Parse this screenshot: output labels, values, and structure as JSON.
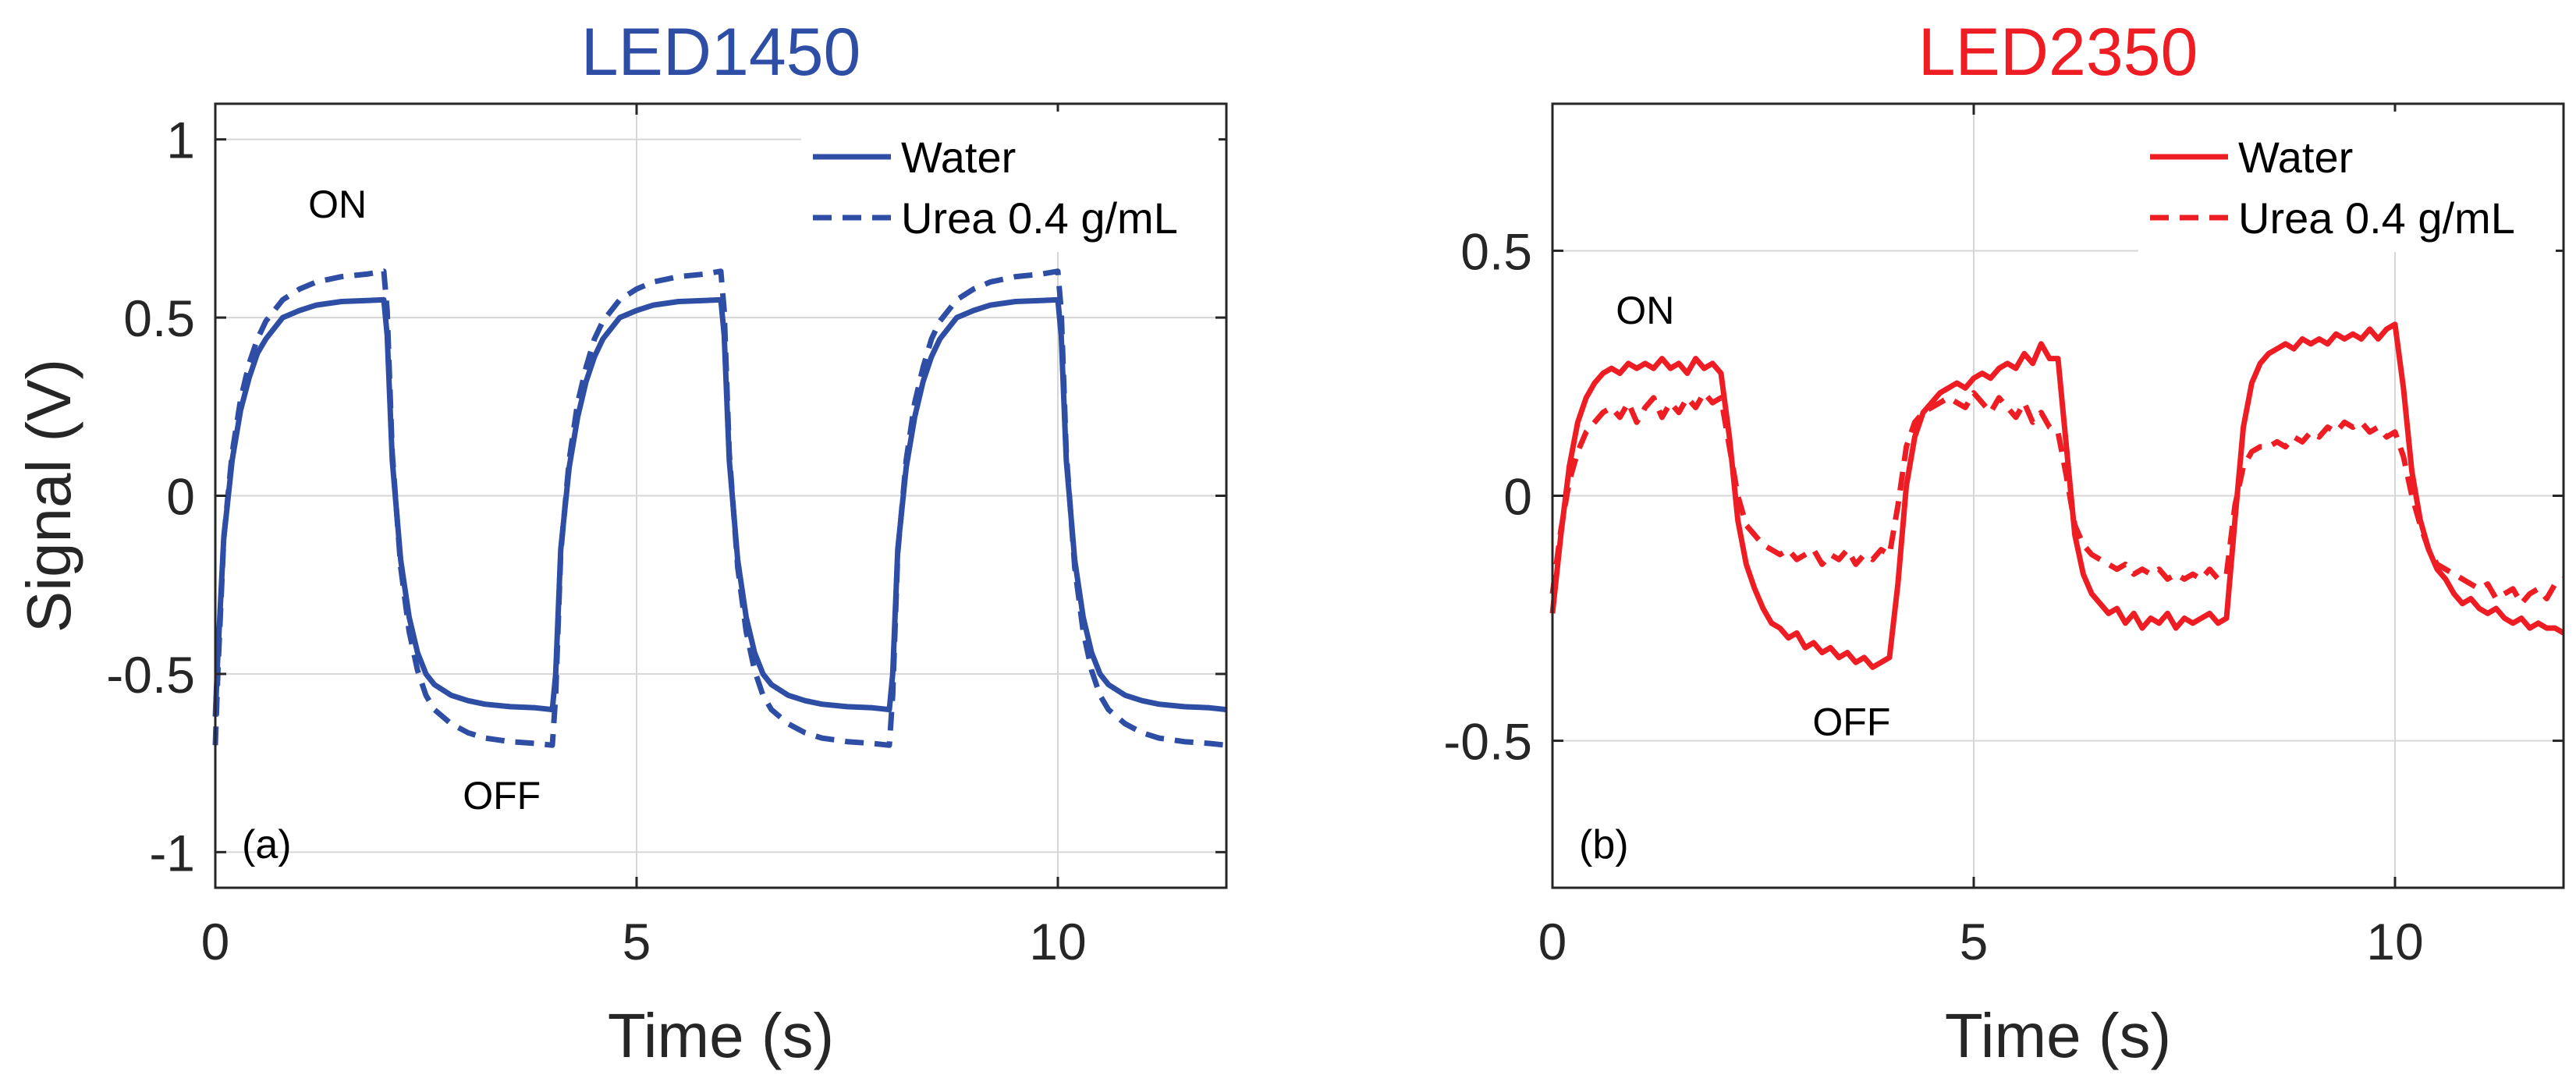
{
  "chart_data": [
    {
      "type": "line",
      "panel_label": "(a)",
      "title": "LED1450",
      "title_color": "#2E4EA5",
      "xlabel": "Time (s)",
      "ylabel": "Signal (V)",
      "xlim": [
        0,
        12
      ],
      "ylim": [
        -1.1,
        1.1
      ],
      "xticks": [
        0,
        5,
        10
      ],
      "xtick_labels": [
        "0",
        "5",
        "10"
      ],
      "yticks": [
        -1,
        -0.5,
        0,
        0.5,
        1
      ],
      "ytick_labels": [
        "-1",
        "-0.5",
        "0",
        "0.5",
        "1"
      ],
      "grid": true,
      "legend_position": "top-right",
      "series": [
        {
          "name": "Water",
          "style": "solid",
          "color": "#2E4EA5",
          "x": [
            0,
            0.03,
            0.1,
            0.2,
            0.3,
            0.4,
            0.5,
            0.6,
            0.8,
            1.0,
            1.2,
            1.5,
            1.8,
            2.0,
            2.04,
            2.1,
            2.2,
            2.3,
            2.4,
            2.5,
            2.6,
            2.8,
            3.0,
            3.2,
            3.5,
            3.8,
            4.0,
            4.04,
            4.1,
            4.2,
            4.3,
            4.4,
            4.5,
            4.6,
            4.8,
            5.0,
            5.2,
            5.5,
            5.8,
            6.0,
            6.04,
            6.1,
            6.2,
            6.3,
            6.4,
            6.5,
            6.6,
            6.8,
            7.0,
            7.2,
            7.5,
            7.8,
            8.0,
            8.04,
            8.1,
            8.2,
            8.3,
            8.4,
            8.5,
            8.6,
            8.8,
            9.0,
            9.2,
            9.5,
            9.8,
            10.0,
            10.04,
            10.1,
            10.2,
            10.3,
            10.4,
            10.5,
            10.6,
            10.8,
            11.0,
            11.2,
            11.5,
            11.8,
            12.0
          ],
          "y": [
            -0.62,
            -0.45,
            -0.12,
            0.1,
            0.24,
            0.33,
            0.4,
            0.44,
            0.5,
            0.52,
            0.535,
            0.545,
            0.548,
            0.55,
            0.45,
            0.1,
            -0.18,
            -0.34,
            -0.44,
            -0.5,
            -0.53,
            -0.56,
            -0.575,
            -0.585,
            -0.592,
            -0.595,
            -0.6,
            -0.5,
            -0.15,
            0.08,
            0.22,
            0.32,
            0.39,
            0.44,
            0.5,
            0.52,
            0.535,
            0.545,
            0.548,
            0.55,
            0.45,
            0.1,
            -0.18,
            -0.34,
            -0.44,
            -0.5,
            -0.53,
            -0.56,
            -0.575,
            -0.585,
            -0.592,
            -0.595,
            -0.6,
            -0.5,
            -0.15,
            0.08,
            0.22,
            0.32,
            0.39,
            0.44,
            0.5,
            0.52,
            0.535,
            0.545,
            0.548,
            0.55,
            0.45,
            0.1,
            -0.18,
            -0.34,
            -0.44,
            -0.5,
            -0.53,
            -0.56,
            -0.575,
            -0.585,
            -0.592,
            -0.595,
            -0.6
          ]
        },
        {
          "name": "Urea 0.4 g/mL",
          "style": "dashed",
          "color": "#2E4EA5",
          "x": [
            0,
            0.03,
            0.1,
            0.2,
            0.3,
            0.4,
            0.5,
            0.6,
            0.8,
            1.0,
            1.2,
            1.5,
            1.8,
            2.0,
            2.04,
            2.1,
            2.2,
            2.3,
            2.4,
            2.5,
            2.6,
            2.8,
            3.0,
            3.2,
            3.5,
            3.8,
            4.0,
            4.04,
            4.1,
            4.2,
            4.3,
            4.4,
            4.5,
            4.6,
            4.8,
            5.0,
            5.2,
            5.5,
            5.8,
            6.0,
            6.04,
            6.1,
            6.2,
            6.3,
            6.4,
            6.5,
            6.6,
            6.8,
            7.0,
            7.2,
            7.5,
            7.8,
            8.0,
            8.04,
            8.1,
            8.2,
            8.3,
            8.4,
            8.5,
            8.6,
            8.8,
            9.0,
            9.2,
            9.5,
            9.8,
            10.0,
            10.04,
            10.1,
            10.2,
            10.3,
            10.4,
            10.5,
            10.6,
            10.8,
            11.0,
            11.2,
            11.5,
            11.8,
            12.0
          ],
          "y": [
            -0.7,
            -0.5,
            -0.12,
            0.12,
            0.27,
            0.37,
            0.44,
            0.49,
            0.55,
            0.58,
            0.6,
            0.615,
            0.622,
            0.63,
            0.52,
            0.12,
            -0.2,
            -0.38,
            -0.49,
            -0.56,
            -0.6,
            -0.64,
            -0.665,
            -0.68,
            -0.69,
            -0.695,
            -0.7,
            -0.56,
            -0.16,
            0.1,
            0.26,
            0.36,
            0.44,
            0.49,
            0.55,
            0.58,
            0.6,
            0.615,
            0.622,
            0.63,
            0.52,
            0.12,
            -0.2,
            -0.38,
            -0.49,
            -0.56,
            -0.6,
            -0.64,
            -0.665,
            -0.68,
            -0.69,
            -0.695,
            -0.7,
            -0.56,
            -0.16,
            0.1,
            0.26,
            0.36,
            0.44,
            0.49,
            0.55,
            0.58,
            0.6,
            0.615,
            0.622,
            0.63,
            0.52,
            0.12,
            -0.2,
            -0.38,
            -0.49,
            -0.56,
            -0.6,
            -0.64,
            -0.665,
            -0.68,
            -0.69,
            -0.695,
            -0.7
          ]
        }
      ],
      "annotations": [
        {
          "text": "ON",
          "x": 1.45,
          "y": 0.82
        },
        {
          "text": "OFF",
          "x": 3.4,
          "y": -0.84
        }
      ]
    },
    {
      "type": "line",
      "panel_label": "(b)",
      "title": "LED2350",
      "title_color": "#EE1D23",
      "xlabel": "Time (s)",
      "ylabel": "",
      "xlim": [
        0,
        12
      ],
      "ylim": [
        -0.8,
        0.8
      ],
      "xticks": [
        0,
        5,
        10
      ],
      "xtick_labels": [
        "0",
        "5",
        "10"
      ],
      "yticks": [
        -0.5,
        0,
        0.5
      ],
      "ytick_labels": [
        "-0.5",
        "0",
        "0.5"
      ],
      "grid": true,
      "legend_position": "top-right",
      "series": [
        {
          "name": "Water",
          "style": "solid",
          "color": "#EE1D23",
          "x": [
            0,
            0.1,
            0.2,
            0.3,
            0.4,
            0.5,
            0.6,
            0.7,
            0.8,
            0.9,
            1.0,
            1.1,
            1.2,
            1.3,
            1.4,
            1.5,
            1.6,
            1.7,
            1.8,
            1.9,
            2.0,
            2.1,
            2.2,
            2.3,
            2.4,
            2.5,
            2.6,
            2.7,
            2.8,
            2.9,
            3.0,
            3.1,
            3.2,
            3.3,
            3.4,
            3.5,
            3.6,
            3.7,
            3.8,
            3.9,
            4.0,
            4.1,
            4.2,
            4.3,
            4.4,
            4.5,
            4.6,
            4.7,
            4.8,
            4.9,
            5.0,
            5.1,
            5.2,
            5.3,
            5.4,
            5.5,
            5.6,
            5.7,
            5.8,
            5.9,
            6.0,
            6.1,
            6.2,
            6.3,
            6.4,
            6.5,
            6.6,
            6.7,
            6.8,
            6.9,
            7.0,
            7.1,
            7.2,
            7.3,
            7.4,
            7.5,
            7.6,
            7.7,
            7.8,
            7.9,
            8.0,
            8.1,
            8.2,
            8.3,
            8.4,
            8.5,
            8.6,
            8.7,
            8.8,
            8.9,
            9.0,
            9.1,
            9.2,
            9.3,
            9.4,
            9.5,
            9.6,
            9.7,
            9.8,
            9.9,
            10.0,
            10.1,
            10.2,
            10.3,
            10.4,
            10.5,
            10.6,
            10.7,
            10.8,
            10.9,
            11.0,
            11.1,
            11.2,
            11.3,
            11.4,
            11.5,
            11.6,
            11.7,
            11.8,
            11.9,
            12.0
          ],
          "y": [
            -0.24,
            -0.08,
            0.06,
            0.15,
            0.2,
            0.23,
            0.25,
            0.26,
            0.25,
            0.27,
            0.26,
            0.27,
            0.26,
            0.28,
            0.26,
            0.27,
            0.25,
            0.28,
            0.26,
            0.27,
            0.25,
            0.12,
            -0.05,
            -0.14,
            -0.19,
            -0.23,
            -0.26,
            -0.27,
            -0.29,
            -0.28,
            -0.31,
            -0.3,
            -0.32,
            -0.31,
            -0.33,
            -0.32,
            -0.34,
            -0.33,
            -0.35,
            -0.34,
            -0.33,
            -0.18,
            0.02,
            0.12,
            0.17,
            0.19,
            0.21,
            0.22,
            0.23,
            0.22,
            0.24,
            0.25,
            0.24,
            0.26,
            0.27,
            0.26,
            0.29,
            0.27,
            0.31,
            0.28,
            0.28,
            0.1,
            -0.08,
            -0.16,
            -0.2,
            -0.22,
            -0.24,
            -0.23,
            -0.26,
            -0.24,
            -0.27,
            -0.25,
            -0.26,
            -0.24,
            -0.27,
            -0.25,
            -0.26,
            -0.25,
            -0.24,
            -0.26,
            -0.25,
            -0.05,
            0.14,
            0.23,
            0.27,
            0.29,
            0.3,
            0.31,
            0.3,
            0.32,
            0.31,
            0.32,
            0.31,
            0.33,
            0.32,
            0.33,
            0.32,
            0.34,
            0.32,
            0.34,
            0.35,
            0.22,
            0.05,
            -0.05,
            -0.11,
            -0.15,
            -0.17,
            -0.2,
            -0.22,
            -0.21,
            -0.23,
            -0.24,
            -0.23,
            -0.25,
            -0.26,
            -0.25,
            -0.27,
            -0.26,
            -0.27,
            -0.27,
            -0.28
          ]
        },
        {
          "name": "Urea 0.4 g/mL",
          "style": "dashed",
          "color": "#EE1D23",
          "x": [
            0,
            0.1,
            0.2,
            0.3,
            0.4,
            0.5,
            0.6,
            0.7,
            0.8,
            0.9,
            1.0,
            1.1,
            1.2,
            1.3,
            1.4,
            1.5,
            1.6,
            1.7,
            1.8,
            1.9,
            2.0,
            2.1,
            2.2,
            2.3,
            2.4,
            2.5,
            2.6,
            2.7,
            2.8,
            2.9,
            3.0,
            3.1,
            3.2,
            3.3,
            3.4,
            3.5,
            3.6,
            3.7,
            3.8,
            3.9,
            4.0,
            4.1,
            4.2,
            4.3,
            4.4,
            4.5,
            4.6,
            4.7,
            4.8,
            4.9,
            5.0,
            5.1,
            5.2,
            5.3,
            5.4,
            5.5,
            5.6,
            5.7,
            5.8,
            5.9,
            6.0,
            6.1,
            6.2,
            6.3,
            6.4,
            6.5,
            6.6,
            6.7,
            6.8,
            6.9,
            7.0,
            7.1,
            7.2,
            7.3,
            7.4,
            7.5,
            7.6,
            7.7,
            7.8,
            7.9,
            8.0,
            8.1,
            8.2,
            8.3,
            8.4,
            8.5,
            8.6,
            8.7,
            8.8,
            8.9,
            9.0,
            9.1,
            9.2,
            9.3,
            9.4,
            9.5,
            9.6,
            9.7,
            9.8,
            9.9,
            10.0,
            10.1,
            10.2,
            10.3,
            10.4,
            10.5,
            10.6,
            10.7,
            10.8,
            10.9,
            11.0,
            11.1,
            11.2,
            11.3,
            11.4,
            11.5,
            11.6,
            11.7,
            11.8,
            11.9,
            12.0
          ],
          "y": [
            -0.2,
            -0.07,
            0.03,
            0.09,
            0.13,
            0.15,
            0.17,
            0.18,
            0.16,
            0.19,
            0.15,
            0.18,
            0.2,
            0.16,
            0.19,
            0.17,
            0.2,
            0.18,
            0.21,
            0.19,
            0.2,
            0.1,
            0.0,
            -0.06,
            -0.08,
            -0.1,
            -0.11,
            -0.12,
            -0.11,
            -0.13,
            -0.12,
            -0.11,
            -0.14,
            -0.12,
            -0.13,
            -0.11,
            -0.14,
            -0.12,
            -0.13,
            -0.11,
            -0.12,
            -0.02,
            0.1,
            0.15,
            0.17,
            0.18,
            0.19,
            0.2,
            0.19,
            0.18,
            0.21,
            0.19,
            0.17,
            0.2,
            0.18,
            0.16,
            0.19,
            0.15,
            0.17,
            0.14,
            0.13,
            0.04,
            -0.06,
            -0.1,
            -0.12,
            -0.13,
            -0.14,
            -0.15,
            -0.14,
            -0.16,
            -0.15,
            -0.16,
            -0.15,
            -0.17,
            -0.16,
            -0.17,
            -0.16,
            -0.17,
            -0.15,
            -0.17,
            -0.16,
            -0.02,
            0.06,
            0.09,
            0.1,
            0.1,
            0.11,
            0.1,
            0.12,
            0.11,
            0.13,
            0.12,
            0.14,
            0.13,
            0.15,
            0.14,
            0.15,
            0.13,
            0.14,
            0.12,
            0.13,
            0.08,
            0.0,
            -0.06,
            -0.11,
            -0.14,
            -0.15,
            -0.16,
            -0.17,
            -0.18,
            -0.19,
            -0.18,
            -0.21,
            -0.2,
            -0.19,
            -0.22,
            -0.2,
            -0.19,
            -0.21,
            -0.18,
            -0.17
          ]
        }
      ],
      "annotations": [
        {
          "text": "ON",
          "x": 1.1,
          "y": 0.38
        },
        {
          "text": "OFF",
          "x": 3.55,
          "y": -0.46
        }
      ]
    }
  ]
}
